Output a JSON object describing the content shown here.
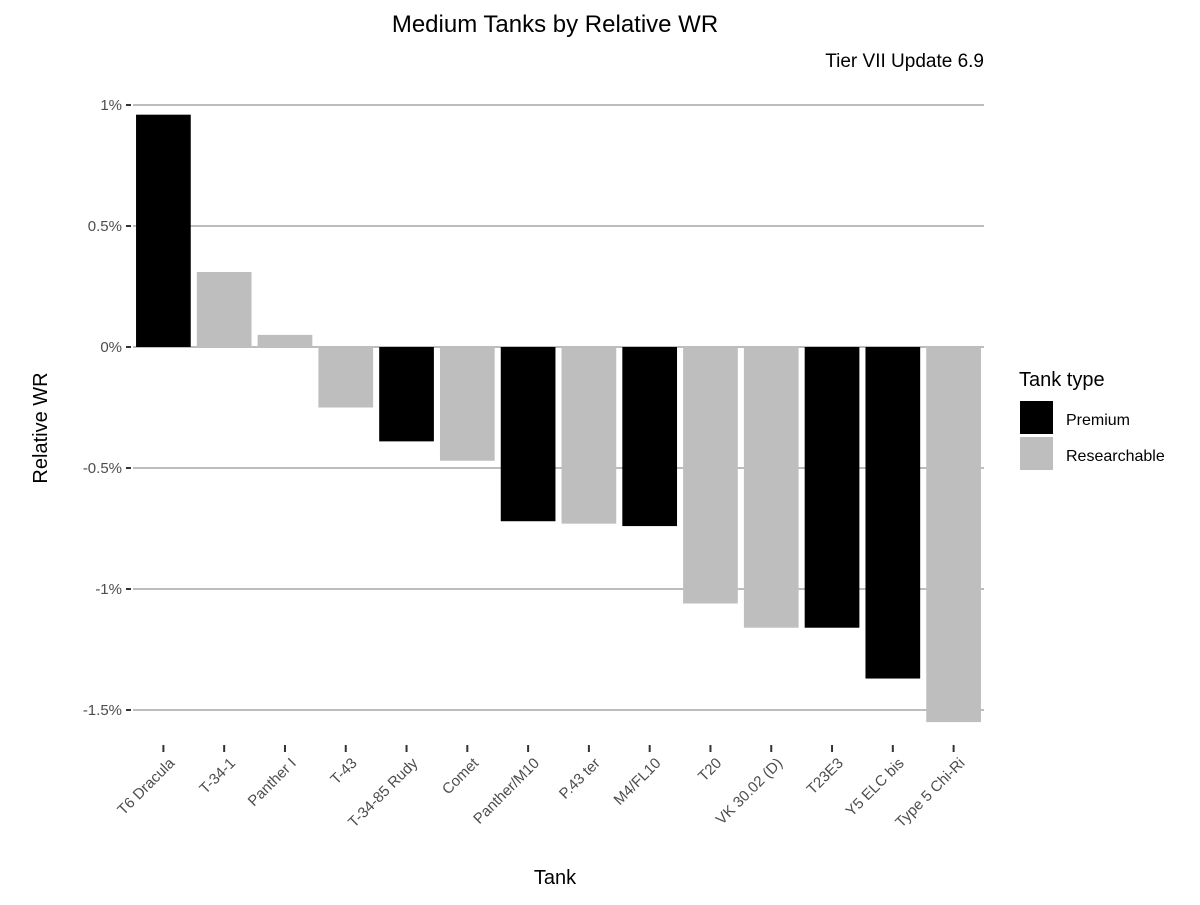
{
  "chart_data": {
    "type": "bar",
    "title": "Medium Tanks by Relative WR",
    "subtitle": "Tier VII Update 6.9",
    "xlabel": "Tank",
    "ylabel": "Relative WR",
    "ylim": [
      -1.6,
      1.0
    ],
    "yticks": [
      {
        "value": 1.0,
        "label": "1%"
      },
      {
        "value": 0.5,
        "label": "0.5%"
      },
      {
        "value": 0.0,
        "label": "0%"
      },
      {
        "value": -0.5,
        "label": "-0.5%"
      },
      {
        "value": -1.0,
        "label": "-1%"
      },
      {
        "value": -1.5,
        "label": "-1.5%"
      }
    ],
    "grid": true,
    "legend": {
      "title": "Tank type",
      "placement": "right",
      "entries": [
        {
          "name": "Premium",
          "color": "#000000"
        },
        {
          "name": "Researchable",
          "color": "#bebebe"
        }
      ]
    },
    "categories": [
      "T6 Dracula",
      "T-34-1",
      "Panther I",
      "T-43",
      "T-34-85 Rudy",
      "Comet",
      "Panther/M10",
      "P.43 ter",
      "M4/FL10",
      "T20",
      "VK 30.02 (D)",
      "T23E3",
      "Y5 ELC bis",
      "Type 5 Chi-Ri"
    ],
    "values": [
      0.96,
      0.31,
      0.05,
      -0.25,
      -0.39,
      -0.47,
      -0.72,
      -0.73,
      -0.74,
      -1.06,
      -1.16,
      -1.16,
      -1.37,
      -1.55
    ],
    "types": [
      "Premium",
      "Researchable",
      "Researchable",
      "Researchable",
      "Premium",
      "Researchable",
      "Premium",
      "Researchable",
      "Premium",
      "Researchable",
      "Researchable",
      "Premium",
      "Premium",
      "Researchable"
    ]
  }
}
